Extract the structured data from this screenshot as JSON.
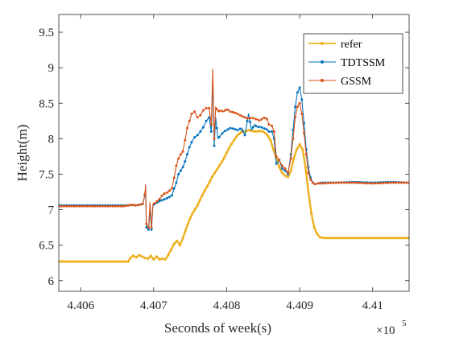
{
  "chart_data": {
    "type": "line",
    "xlabel": "Seconds of week(s)",
    "ylabel": "Height(m)",
    "x_exponent_label": "×10",
    "x_exponent_power": "5",
    "xlim": [
      4.4057,
      4.4105
    ],
    "ylim": [
      5.85,
      9.75
    ],
    "x_ticks": [
      4.406,
      4.407,
      4.408,
      4.409,
      4.41
    ],
    "x_tick_labels": [
      "4.406",
      "4.407",
      "4.408",
      "4.409",
      "4.41"
    ],
    "y_ticks": [
      6,
      6.5,
      7,
      7.5,
      8,
      8.5,
      9,
      9.5
    ],
    "y_tick_labels": [
      "6",
      "6.5",
      "7",
      "7.5",
      "8",
      "8.5",
      "9",
      "9.5"
    ],
    "grid": false,
    "legend_position": "top-right",
    "series": [
      {
        "name": "refer",
        "color": "#EDB120",
        "marker": "dot",
        "x": [
          4.4057,
          4.40665,
          4.40668,
          4.40672,
          4.40676,
          4.4068,
          4.40684,
          4.40688,
          4.40692,
          4.40696,
          4.407,
          4.40704,
          4.40708,
          4.40712,
          4.40716,
          4.4072,
          4.40724,
          4.40728,
          4.40732,
          4.40736,
          4.4074,
          4.40745,
          4.4075,
          4.40755,
          4.4076,
          4.40765,
          4.4077,
          4.40775,
          4.4078,
          4.40785,
          4.4079,
          4.40795,
          4.408,
          4.40805,
          4.4081,
          4.40815,
          4.4082,
          4.40825,
          4.4083,
          4.40835,
          4.4084,
          4.40845,
          4.4085,
          4.40855,
          4.4086,
          4.40864,
          4.40868,
          4.40872,
          4.40876,
          4.4088,
          4.40884,
          4.40888,
          4.40892,
          4.40896,
          4.409,
          4.40904,
          4.40908,
          4.40912,
          4.40916,
          4.4092,
          4.40924,
          4.40928,
          4.40935,
          4.41,
          4.4105
        ],
        "y": [
          6.27,
          6.27,
          6.32,
          6.35,
          6.33,
          6.36,
          6.34,
          6.32,
          6.31,
          6.35,
          6.3,
          6.34,
          6.3,
          6.31,
          6.3,
          6.36,
          6.44,
          6.52,
          6.56,
          6.5,
          6.6,
          6.75,
          6.88,
          6.98,
          7.06,
          7.17,
          7.27,
          7.36,
          7.46,
          7.54,
          7.62,
          7.7,
          7.8,
          7.9,
          7.98,
          8.05,
          8.09,
          8.1,
          8.12,
          8.11,
          8.1,
          8.11,
          8.1,
          8.06,
          7.98,
          7.85,
          7.72,
          7.6,
          7.52,
          7.48,
          7.46,
          7.55,
          7.72,
          7.85,
          7.92,
          7.85,
          7.6,
          7.25,
          6.95,
          6.75,
          6.66,
          6.61,
          6.6,
          6.6,
          6.6
        ]
      },
      {
        "name": "TDTSSM",
        "color": "#0072BD",
        "marker": "dot",
        "x": [
          4.4057,
          4.4066,
          4.40665,
          4.4067,
          4.40675,
          4.4068,
          4.40685,
          4.40688,
          4.40689,
          4.4069,
          4.40693,
          4.40695,
          4.40697,
          4.40699,
          4.40703,
          4.40708,
          4.40713,
          4.4072,
          4.40725,
          4.40728,
          4.40731,
          4.40734,
          4.40737,
          4.4074,
          4.40743,
          4.40746,
          4.40749,
          4.40752,
          4.40756,
          4.4076,
          4.40764,
          4.40768,
          4.40772,
          4.40776,
          4.40779,
          4.40781,
          4.40783,
          4.40785,
          4.40788,
          4.40792,
          4.40796,
          4.408,
          4.40805,
          4.4081,
          4.40815,
          4.4082,
          4.40825,
          4.4083,
          4.40834,
          4.40838,
          4.40842,
          4.40846,
          4.4085,
          4.40855,
          4.40858,
          4.40862,
          4.40865,
          4.40868,
          4.40872,
          4.40876,
          4.4088,
          4.40884,
          4.40888,
          4.40891,
          4.40894,
          4.40897,
          4.409,
          4.40903,
          4.40906,
          4.40909,
          4.40912,
          4.40915,
          4.40918,
          4.40921,
          4.40925,
          4.4093,
          4.4095,
          4.40975,
          4.41,
          4.41025,
          4.4105
        ],
        "y": [
          7.06,
          7.06,
          7.06,
          7.07,
          7.06,
          7.07,
          7.08,
          7.2,
          7.3,
          6.75,
          6.72,
          7.0,
          6.72,
          7.06,
          7.09,
          7.12,
          7.14,
          7.17,
          7.2,
          7.3,
          7.38,
          7.5,
          7.55,
          7.6,
          7.68,
          7.78,
          7.88,
          7.95,
          8.02,
          8.05,
          8.1,
          8.16,
          8.25,
          8.3,
          8.1,
          8.85,
          7.9,
          8.3,
          8.0,
          8.05,
          8.1,
          8.12,
          8.15,
          8.14,
          8.12,
          8.15,
          8.05,
          8.35,
          8.12,
          8.2,
          8.16,
          8.17,
          8.15,
          8.13,
          8.1,
          8.1,
          8.0,
          7.65,
          7.7,
          7.58,
          7.55,
          7.5,
          7.78,
          8.12,
          8.45,
          8.65,
          8.72,
          8.55,
          8.22,
          7.85,
          7.6,
          7.45,
          7.38,
          7.36,
          7.37,
          7.38,
          7.38,
          7.39,
          7.38,
          7.39,
          7.38
        ]
      },
      {
        "name": "GSSM",
        "color": "#D95319",
        "marker": "dot",
        "x": [
          4.4057,
          4.4066,
          4.40665,
          4.4067,
          4.40675,
          4.4068,
          4.40685,
          4.40688,
          4.40689,
          4.4069,
          4.40693,
          4.40695,
          4.40697,
          4.40699,
          4.40703,
          4.40708,
          4.40713,
          4.4072,
          4.40725,
          4.40728,
          4.40731,
          4.40734,
          4.40737,
          4.4074,
          4.40743,
          4.40746,
          4.40749,
          4.40752,
          4.40756,
          4.4076,
          4.40764,
          4.40768,
          4.40772,
          4.40776,
          4.40779,
          4.40781,
          4.40783,
          4.40785,
          4.40788,
          4.40792,
          4.40796,
          4.408,
          4.40805,
          4.4081,
          4.40815,
          4.4082,
          4.40825,
          4.4083,
          4.40834,
          4.40838,
          4.40842,
          4.40846,
          4.4085,
          4.40855,
          4.40858,
          4.40862,
          4.40865,
          4.40868,
          4.40872,
          4.40876,
          4.4088,
          4.40884,
          4.40888,
          4.40891,
          4.40894,
          4.40897,
          4.409,
          4.40903,
          4.40906,
          4.40909,
          4.40912,
          4.40915,
          4.40918,
          4.40921,
          4.40925,
          4.4093,
          4.4095,
          4.40975,
          4.41,
          4.41025,
          4.4105
        ],
        "y": [
          7.05,
          7.05,
          7.06,
          7.07,
          7.06,
          7.07,
          7.08,
          7.22,
          7.35,
          6.8,
          6.75,
          7.1,
          6.75,
          7.08,
          7.1,
          7.15,
          7.22,
          7.25,
          7.3,
          7.45,
          7.62,
          7.72,
          7.78,
          7.82,
          7.98,
          8.15,
          8.25,
          8.35,
          8.38,
          8.3,
          8.33,
          8.4,
          8.43,
          8.43,
          8.2,
          8.98,
          8.0,
          8.45,
          8.38,
          8.4,
          8.38,
          8.42,
          8.38,
          8.37,
          8.35,
          8.32,
          8.3,
          8.28,
          8.3,
          8.28,
          8.27,
          8.25,
          8.3,
          8.28,
          8.2,
          8.18,
          8.1,
          7.75,
          7.7,
          7.62,
          7.58,
          7.52,
          7.72,
          8.0,
          8.3,
          8.45,
          8.5,
          8.35,
          8.08,
          7.78,
          7.52,
          7.42,
          7.38,
          7.36,
          7.37,
          7.37,
          7.38,
          7.38,
          7.37,
          7.38,
          7.38
        ]
      }
    ]
  }
}
